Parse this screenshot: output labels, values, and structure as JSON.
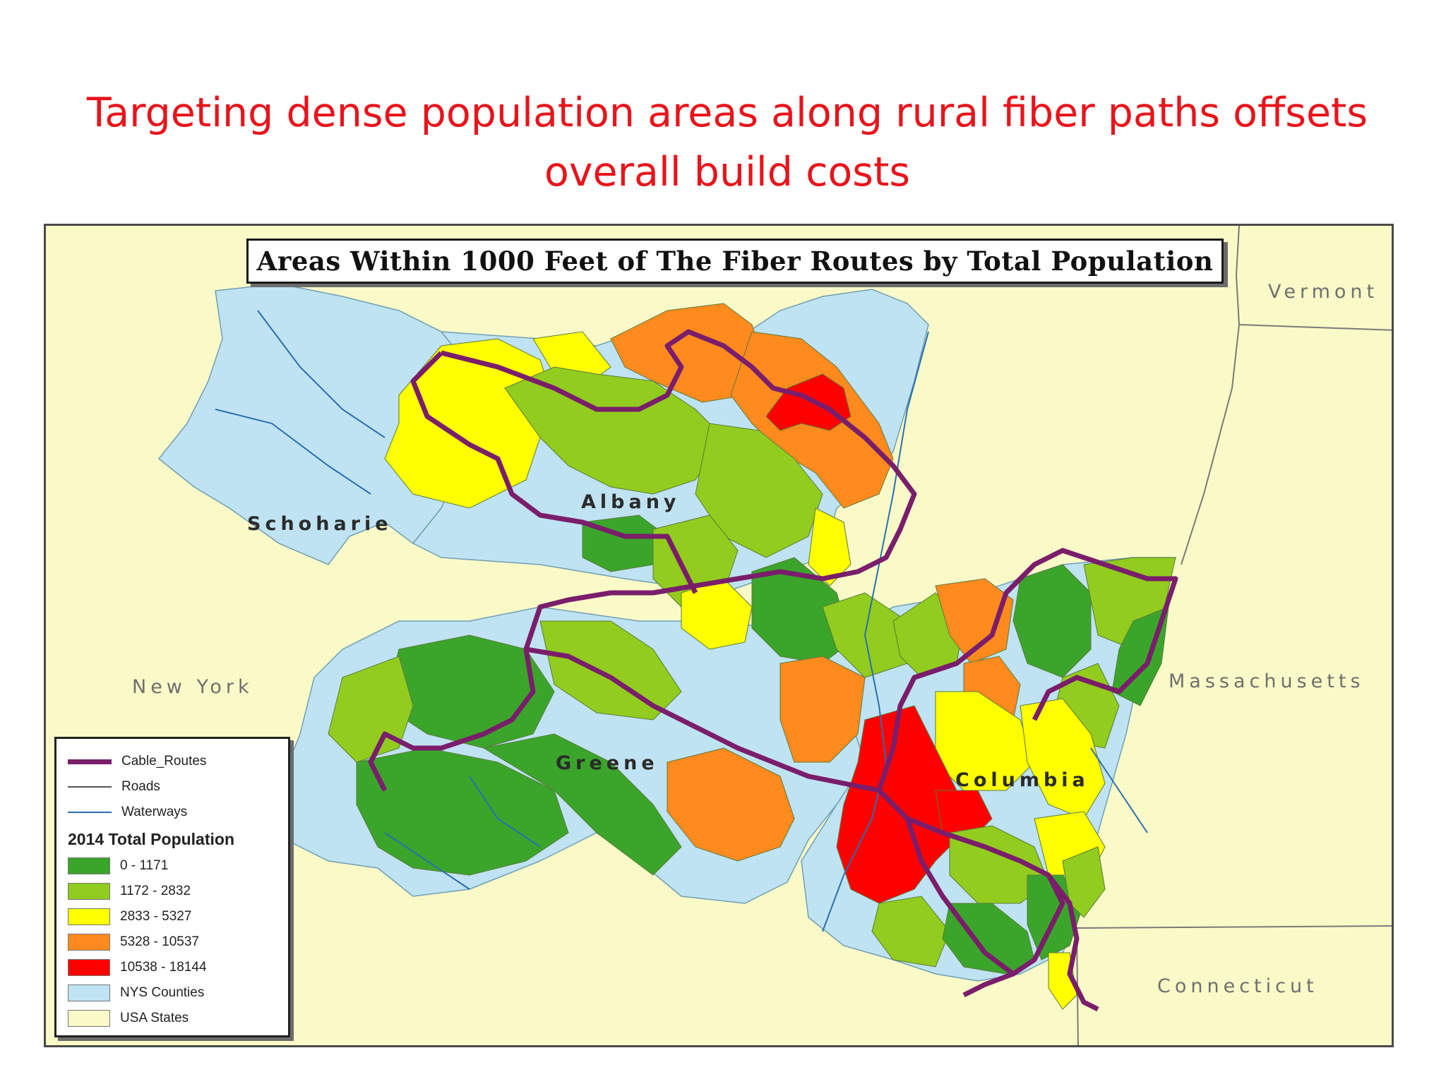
{
  "slide": {
    "title_line1": "Targeting dense population areas along rural fiber paths offsets",
    "title_line2": "overall build costs"
  },
  "map": {
    "title": "Areas Within 1000 Feet of The Fiber Routes by Total Population",
    "state_labels": {
      "vermont": "Vermont",
      "new_york": "New York",
      "massachusetts": "Massachusetts",
      "connecticut": "Connecticut"
    },
    "county_labels": {
      "schoharie": "Schoharie",
      "albany": "Albany",
      "greene": "Greene",
      "columbia": "Columbia"
    },
    "colors": {
      "usa_states": "#fafac8",
      "nys_counties": "#bfe3f2",
      "pop_0_1171": "#3aa52a",
      "pop_1172_2832": "#92cc1e",
      "pop_2833_5327": "#ffff00",
      "pop_5328_10537": "#ff8a1e",
      "pop_10538_18144": "#ff0000",
      "cable_routes": "#7a1e6b",
      "roads": "#555555",
      "waterways": "#2a6fb0"
    },
    "legend": {
      "cable_routes": "Cable_Routes",
      "roads": "Roads",
      "waterways": "Waterways",
      "heading": "2014 Total Population",
      "classes": [
        {
          "label": "0 - 1171",
          "color": "#3aa52a"
        },
        {
          "label": "1172 - 2832",
          "color": "#92cc1e"
        },
        {
          "label": "2833 - 5327",
          "color": "#ffff00"
        },
        {
          "label": "5328 - 10537",
          "color": "#ff8a1e"
        },
        {
          "label": "10538 - 18144",
          "color": "#ff0000"
        },
        {
          "label": "NYS Counties",
          "color": "#bfe3f2"
        },
        {
          "label": "USA States",
          "color": "#fafac8"
        }
      ]
    }
  }
}
